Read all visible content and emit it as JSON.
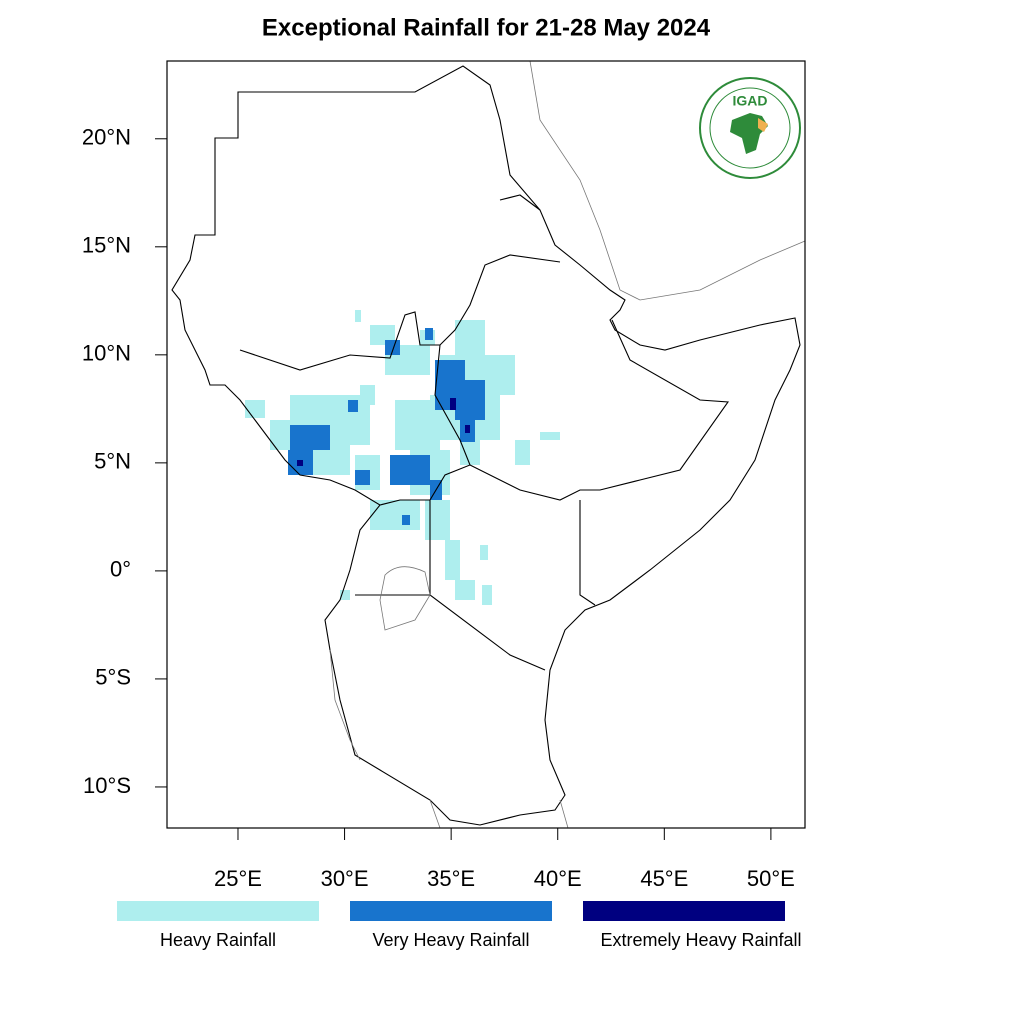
{
  "map": {
    "title": "Exceptional Rainfall for 21-28 May 2024",
    "xlim": [
      21.67,
      51.6
    ],
    "ylim": [
      -11.9,
      23.6
    ],
    "xticks": [
      {
        "value": 25,
        "label": "25°E"
      },
      {
        "value": 30,
        "label": "30°E"
      },
      {
        "value": 35,
        "label": "35°E"
      },
      {
        "value": 40,
        "label": "40°E"
      },
      {
        "value": 45,
        "label": "45°E"
      },
      {
        "value": 50,
        "label": "50°E"
      }
    ],
    "yticks": [
      {
        "value": 20,
        "label": "20°N"
      },
      {
        "value": 15,
        "label": "15°N"
      },
      {
        "value": 10,
        "label": "10°N"
      },
      {
        "value": 5,
        "label": "5°N"
      },
      {
        "value": 0,
        "label": "0°"
      },
      {
        "value": -5,
        "label": "5°S"
      },
      {
        "value": -10,
        "label": "10°S"
      }
    ],
    "legend": [
      {
        "label": "Heavy Rainfall",
        "color": "#aeeeee"
      },
      {
        "label": "Very Heavy Rainfall",
        "color": "#1874cd"
      },
      {
        "label": "Extremely Heavy Rainfall",
        "color": "#000080"
      }
    ],
    "logo": "IGAD"
  }
}
